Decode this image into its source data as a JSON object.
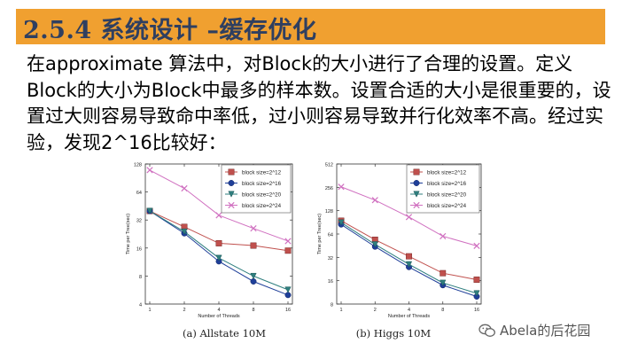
{
  "header": {
    "title": "2.5.4 系统设计 –缓存优化"
  },
  "body_text": "在approximate 算法中，对Block的大小进行了合理的设置。定义Block的大小为Block中最多的样本数。设置合适的大小是很重要的，设置过大则容易导致命中率低，过小则容易导致并行化效率不高。经过实验，发现2^16比较好：",
  "watermark": {
    "text": "Abela的后花园",
    "icon": "wechat-icon"
  },
  "colors": {
    "title_bar": "#f0a030",
    "title_text": "#2f3f60",
    "series": [
      "#c0504d",
      "#1f3f99",
      "#2f7f7f",
      "#d070c0"
    ]
  },
  "chart_data": [
    {
      "type": "line",
      "caption": "(a) Allstate 10M",
      "xlabel": "Number of Threads",
      "ylabel": "Time per Tree(sec)",
      "x": [
        1,
        2,
        4,
        8,
        16
      ],
      "xticks": [
        "1",
        "2",
        "4",
        "8",
        "16"
      ],
      "yscale": "log2",
      "ylim": [
        4,
        128
      ],
      "yticks": [
        "4",
        "8",
        "16",
        "32",
        "64",
        "128"
      ],
      "legend_position": "top-right",
      "series": [
        {
          "name": "block size=2^12",
          "marker": "square",
          "values": [
            40,
            27,
            18,
            17,
            15
          ]
        },
        {
          "name": "block size=2^16",
          "marker": "circle",
          "values": [
            40,
            23,
            11.5,
            7,
            5
          ]
        },
        {
          "name": "block size=2^20",
          "marker": "triangle-down",
          "values": [
            40,
            24,
            12.5,
            8,
            5.7
          ]
        },
        {
          "name": "block size=2^24",
          "marker": "x",
          "values": [
            110,
            70,
            36,
            26,
            19
          ]
        }
      ]
    },
    {
      "type": "line",
      "caption": "(b) Higgs 10M",
      "xlabel": "Number of Threads",
      "ylabel": "Time per Tree(sec)",
      "x": [
        1,
        2,
        4,
        8,
        16
      ],
      "xticks": [
        "1",
        "2",
        "4",
        "8",
        "16"
      ],
      "yscale": "log2",
      "ylim": [
        8,
        512
      ],
      "yticks": [
        "8",
        "16",
        "32",
        "64",
        "128",
        "256",
        "512"
      ],
      "legend_position": "top-right",
      "series": [
        {
          "name": "block size=2^12",
          "marker": "square",
          "values": [
            95,
            54,
            33,
            20,
            16.5
          ]
        },
        {
          "name": "block size=2^16",
          "marker": "circle",
          "values": [
            85,
            44,
            24,
            14,
            10
          ]
        },
        {
          "name": "block size=2^20",
          "marker": "triangle-down",
          "values": [
            90,
            47,
            26,
            15,
            11
          ]
        },
        {
          "name": "block size=2^24",
          "marker": "x",
          "values": [
            260,
            175,
            106,
            60,
            45
          ]
        }
      ]
    }
  ]
}
